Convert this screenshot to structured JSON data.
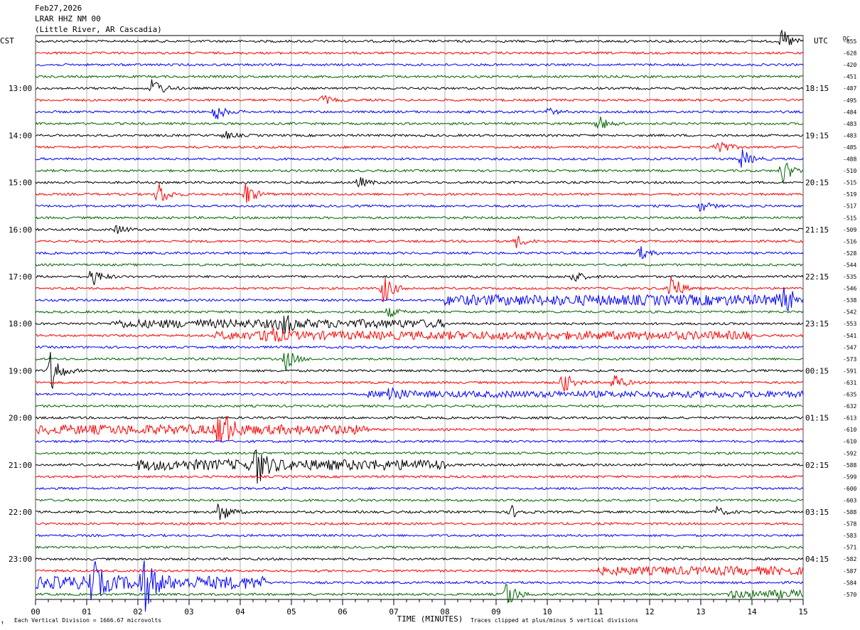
{
  "header": {
    "date": "Feb27,2026",
    "station": "LRAR HHZ NM 00",
    "location": "(Little River, AR Cascadia)"
  },
  "left_tz": "CST",
  "right_tz": "UTC",
  "dc_label": "DC",
  "footer": {
    "scale_note": "Each Vertical Division = 1666.67 microvolts",
    "clip_note": "Traces clipped at plus/minus 5 vertical divisions",
    "corner_mark": "↑"
  },
  "colors": {
    "black": "#000000",
    "red": "#ff0000",
    "blue": "#0000ff",
    "green": "#006400",
    "grid": "#808080"
  },
  "chart_data": {
    "type": "line",
    "title": "",
    "xlabel": "TIME (MINUTES)",
    "ylabel": "",
    "xlim": [
      0,
      15
    ],
    "x_ticks": [
      "00",
      "01",
      "02",
      "03",
      "04",
      "05",
      "06",
      "07",
      "08",
      "09",
      "10",
      "11",
      "12",
      "13",
      "14",
      "15"
    ],
    "trace_color_cycle": [
      "black",
      "red",
      "blue",
      "green"
    ],
    "hour_labels_left": [
      "13:00",
      "14:00",
      "15:00",
      "16:00",
      "17:00",
      "18:00",
      "19:00",
      "20:00",
      "21:00",
      "22:00",
      "23:00"
    ],
    "hour_labels_right": [
      "18:15",
      "19:15",
      "20:15",
      "21:15",
      "22:15",
      "23:15",
      "00:15",
      "01:15",
      "02:15",
      "03:15",
      "04:15"
    ],
    "dc_offsets": [
      -655,
      -628,
      -420,
      -451,
      -487,
      -495,
      -484,
      -483,
      -483,
      -485,
      -488,
      -510,
      -515,
      -519,
      -517,
      -515,
      -509,
      -516,
      -528,
      -544,
      -535,
      -546,
      -538,
      -542,
      -553,
      -541,
      -547,
      -573,
      -591,
      -631,
      -635,
      -632,
      -613,
      -610,
      -610,
      -592,
      -588,
      -599,
      -600,
      -603,
      -588,
      -578,
      -583,
      -571,
      -582,
      -587,
      -584,
      -570
    ],
    "events": [
      {
        "trace": 0,
        "minute": 14.6,
        "amp": 1.2
      },
      {
        "trace": 4,
        "minute": 2.3,
        "amp": 1.2
      },
      {
        "trace": 5,
        "minute": 5.6,
        "amp": 0.5
      },
      {
        "trace": 6,
        "minute": 3.5,
        "amp": 1.0
      },
      {
        "trace": 6,
        "minute": 10.0,
        "amp": 0.4
      },
      {
        "trace": 7,
        "minute": 11.0,
        "amp": 0.8
      },
      {
        "trace": 8,
        "minute": 3.7,
        "amp": 0.4
      },
      {
        "trace": 9,
        "minute": 13.3,
        "amp": 1.2
      },
      {
        "trace": 10,
        "minute": 13.8,
        "amp": 1.0
      },
      {
        "trace": 11,
        "minute": 14.6,
        "amp": 1.3
      },
      {
        "trace": 12,
        "minute": 6.3,
        "amp": 0.6
      },
      {
        "trace": 13,
        "minute": 2.4,
        "amp": 1.3
      },
      {
        "trace": 13,
        "minute": 4.1,
        "amp": 1.2
      },
      {
        "trace": 14,
        "minute": 13.0,
        "amp": 0.6
      },
      {
        "trace": 16,
        "minute": 1.6,
        "amp": 0.5
      },
      {
        "trace": 17,
        "minute": 9.4,
        "amp": 0.6
      },
      {
        "trace": 18,
        "minute": 11.8,
        "amp": 0.7
      },
      {
        "trace": 20,
        "minute": 1.1,
        "amp": 1.0
      },
      {
        "trace": 20,
        "minute": 10.5,
        "amp": 0.7
      },
      {
        "trace": 21,
        "minute": 6.8,
        "amp": 1.6
      },
      {
        "trace": 21,
        "minute": 12.4,
        "amp": 1.8
      },
      {
        "trace": 22,
        "minute": 14.6,
        "amp": 1.3
      },
      {
        "trace": 23,
        "minute": 6.9,
        "amp": 0.5
      },
      {
        "trace": 24,
        "minute": 4.8,
        "amp": 1.2
      },
      {
        "trace": 25,
        "minute": 4.5,
        "amp": 1.2
      },
      {
        "trace": 27,
        "minute": 4.9,
        "amp": 1.1
      },
      {
        "trace": 28,
        "minute": 0.3,
        "amp": 2.2
      },
      {
        "trace": 29,
        "minute": 10.3,
        "amp": 1.2
      },
      {
        "trace": 29,
        "minute": 11.3,
        "amp": 1.0
      },
      {
        "trace": 30,
        "minute": 6.9,
        "amp": 1.0
      },
      {
        "trace": 33,
        "minute": 3.6,
        "amp": 2.5
      },
      {
        "trace": 36,
        "minute": 4.3,
        "amp": 2.0
      },
      {
        "trace": 40,
        "minute": 3.6,
        "amp": 1.3
      },
      {
        "trace": 40,
        "minute": 9.3,
        "amp": 0.6
      },
      {
        "trace": 40,
        "minute": 13.3,
        "amp": 0.5
      },
      {
        "trace": 46,
        "minute": 1.1,
        "amp": 2.2
      },
      {
        "trace": 46,
        "minute": 2.1,
        "amp": 3.0
      },
      {
        "trace": 47,
        "minute": 9.2,
        "amp": 1.6
      }
    ],
    "noisy_segments": [
      {
        "trace": 22,
        "from": 8.0,
        "to": 14.8,
        "amp": 0.8
      },
      {
        "trace": 24,
        "from": 1.5,
        "to": 8.0,
        "amp": 0.6
      },
      {
        "trace": 25,
        "from": 3.5,
        "to": 14.0,
        "amp": 0.6
      },
      {
        "trace": 30,
        "from": 6.5,
        "to": 15.0,
        "amp": 0.4
      },
      {
        "trace": 33,
        "from": 0.0,
        "to": 6.5,
        "amp": 0.7
      },
      {
        "trace": 36,
        "from": 2.0,
        "to": 8.0,
        "amp": 0.8
      },
      {
        "trace": 45,
        "from": 11.0,
        "to": 15.0,
        "amp": 0.6
      },
      {
        "trace": 46,
        "from": 0.0,
        "to": 4.5,
        "amp": 1.0
      },
      {
        "trace": 47,
        "from": 13.5,
        "to": 15.0,
        "amp": 0.6
      }
    ]
  }
}
